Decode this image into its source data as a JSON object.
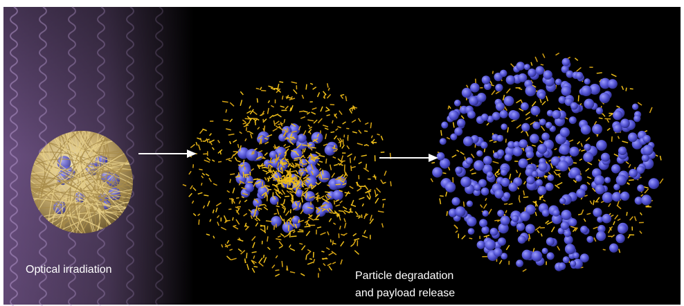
{
  "labels": {
    "irradiation": "Optical irradiation",
    "degradation": [
      "Particle degradation",
      "and payload release"
    ]
  }
}
